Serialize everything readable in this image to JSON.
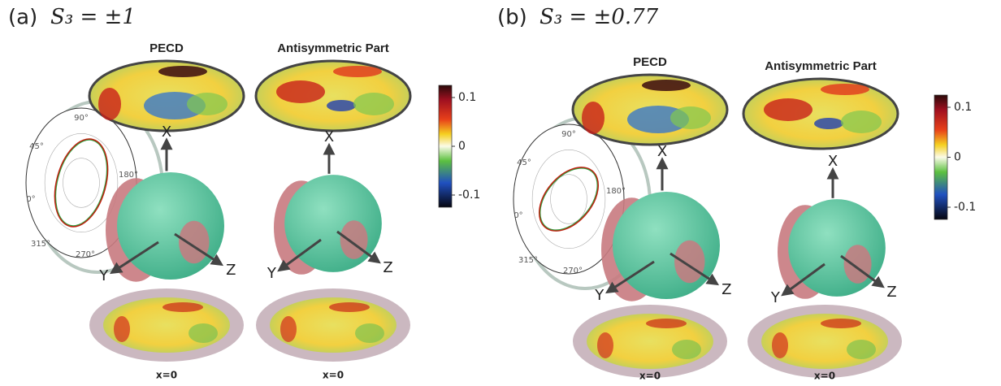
{
  "panels": [
    {
      "label": "(a)",
      "condition": "S₃ = ±1",
      "left_title": "PECD",
      "right_title": "Antisymmetric Part",
      "colorbar_ticks": [
        "0.1",
        "0",
        "-0.1"
      ],
      "polar_angles": [
        "90°",
        "45°",
        "0°",
        "315°",
        "270°",
        "180°"
      ],
      "axes": [
        "X",
        "Y",
        "Z"
      ],
      "plane_label": "x=0"
    },
    {
      "label": "(b)",
      "condition": "S₃ = ±0.77",
      "left_title": "PECD",
      "right_title": "Antisymmetric Part",
      "colorbar_ticks": [
        "0.1",
        "0",
        "-0.1"
      ],
      "polar_angles": [
        "90°",
        "45°",
        "0°",
        "315°",
        "270°",
        "180°"
      ],
      "axes": [
        "X",
        "Y",
        "Z"
      ],
      "plane_label": "x=0"
    }
  ]
}
